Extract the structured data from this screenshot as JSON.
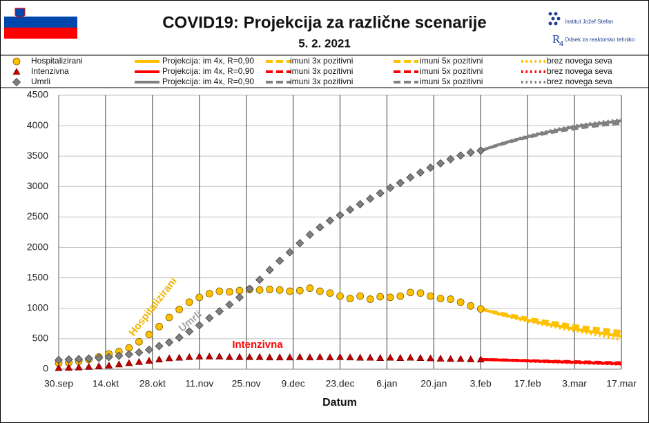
{
  "chart_data": {
    "type": "line",
    "title": "COVID19: Projekcija za različne scenarije",
    "subtitle": "5. 2. 2021",
    "logo_texts": [
      "Institut Jožef Stefan",
      "Odsek za reaktorsko tehniko"
    ],
    "x_label": "Datum",
    "xlim": [
      0,
      168
    ],
    "xticks": [
      {
        "value": 0,
        "label": "30.sep"
      },
      {
        "value": 14,
        "label": "14.okt"
      },
      {
        "value": 28,
        "label": "28.okt"
      },
      {
        "value": 42,
        "label": "11.nov"
      },
      {
        "value": 56,
        "label": "25.nov"
      },
      {
        "value": 70,
        "label": "9.dec"
      },
      {
        "value": 84,
        "label": "23.dec"
      },
      {
        "value": 98,
        "label": "6.jan"
      },
      {
        "value": 112,
        "label": "20.jan"
      },
      {
        "value": 126,
        "label": "3.feb"
      },
      {
        "value": 140,
        "label": "17.feb"
      },
      {
        "value": 154,
        "label": "3.mar"
      },
      {
        "value": 168,
        "label": "17.mar"
      }
    ],
    "ylim": [
      0,
      4500
    ],
    "yticks": [
      0,
      500,
      1000,
      1500,
      2000,
      2500,
      3000,
      3500,
      4000,
      4500
    ],
    "grid": true,
    "annotations": [
      {
        "text": "Hospitalizirani",
        "color": "#f0b400"
      },
      {
        "text": "Umrli",
        "color": "#a6a6a6"
      },
      {
        "text": "Intenzivna",
        "color": "#ff0000"
      }
    ],
    "series": [
      {
        "name": "Hospitalizirani",
        "color": "#ffc000",
        "marker": "circle",
        "x": [
          0,
          3,
          6,
          9,
          12,
          15,
          18,
          21,
          24,
          27,
          30,
          33,
          36,
          39,
          42,
          45,
          48,
          51,
          54,
          57,
          60,
          63,
          66,
          69,
          72,
          75,
          78,
          81,
          84,
          87,
          90,
          93,
          96,
          99,
          102,
          105,
          108,
          111,
          114,
          117,
          120,
          123,
          126
        ],
        "values": [
          100,
          110,
          130,
          160,
          200,
          250,
          290,
          350,
          450,
          570,
          700,
          850,
          980,
          1100,
          1180,
          1240,
          1280,
          1270,
          1290,
          1310,
          1300,
          1310,
          1300,
          1280,
          1290,
          1330,
          1280,
          1250,
          1200,
          1160,
          1200,
          1150,
          1190,
          1180,
          1200,
          1260,
          1250,
          1200,
          1160,
          1150,
          1100,
          1040,
          990
        ]
      },
      {
        "name": "Projekcija: im 4x, R=0,90",
        "color": "#ffc000",
        "dash": "solid",
        "x": [
          126,
          132,
          138,
          144,
          150,
          156,
          162,
          168
        ],
        "values": [
          990,
          900,
          830,
          760,
          700,
          640,
          590,
          540
        ]
      },
      {
        "name": "imuni 3x pozitivni",
        "color": "#ffc000",
        "dash": "dashed",
        "x": [
          126,
          132,
          138,
          144,
          150,
          156,
          162,
          168
        ],
        "values": [
          990,
          910,
          840,
          780,
          720,
          670,
          620,
          580
        ]
      },
      {
        "name": "imuni 5x pozitivni",
        "color": "#ffc000",
        "dash": "dashed",
        "x": [
          126,
          132,
          138,
          144,
          150,
          156,
          162,
          168
        ],
        "values": [
          990,
          920,
          860,
          800,
          750,
          700,
          660,
          620
        ]
      },
      {
        "name": "brez novega seva",
        "color": "#ffc000",
        "dash": "dotted",
        "x": [
          126,
          132,
          138,
          144,
          150,
          156,
          162,
          168
        ],
        "values": [
          990,
          890,
          810,
          740,
          670,
          610,
          550,
          480
        ]
      },
      {
        "name": "Intenzivna",
        "color": "#c00000",
        "marker": "triangle",
        "x": [
          0,
          3,
          6,
          9,
          12,
          15,
          18,
          21,
          24,
          27,
          30,
          33,
          36,
          39,
          42,
          45,
          48,
          51,
          54,
          57,
          60,
          63,
          66,
          69,
          72,
          75,
          78,
          81,
          84,
          87,
          90,
          93,
          96,
          99,
          102,
          105,
          108,
          111,
          114,
          117,
          120,
          123,
          126
        ],
        "values": [
          20,
          25,
          30,
          40,
          50,
          60,
          80,
          100,
          120,
          140,
          160,
          180,
          190,
          200,
          210,
          210,
          210,
          200,
          200,
          200,
          200,
          195,
          195,
          195,
          200,
          195,
          200,
          195,
          200,
          195,
          190,
          190,
          185,
          190,
          185,
          190,
          185,
          180,
          175,
          170,
          170,
          165,
          160
        ]
      },
      {
        "name": "Projekcija: im 4x, R=0,90",
        "color": "#ff0000",
        "dash": "solid",
        "x": [
          126,
          132,
          138,
          144,
          150,
          156,
          162,
          168
        ],
        "values": [
          160,
          150,
          140,
          130,
          120,
          110,
          100,
          90
        ]
      },
      {
        "name": "imuni 3x pozitivni",
        "color": "#ff0000",
        "dash": "dashed",
        "x": [
          126,
          132,
          138,
          144,
          150,
          156,
          162,
          168
        ],
        "values": [
          160,
          152,
          143,
          134,
          125,
          116,
          107,
          98
        ]
      },
      {
        "name": "imuni 5x pozitivni",
        "color": "#ff0000",
        "dash": "dashed",
        "x": [
          126,
          132,
          138,
          144,
          150,
          156,
          162,
          168
        ],
        "values": [
          160,
          153,
          145,
          137,
          129,
          121,
          113,
          105
        ]
      },
      {
        "name": "brez novega seva",
        "color": "#ff0000",
        "dash": "dotted",
        "x": [
          126,
          132,
          138,
          144,
          150,
          156,
          162,
          168
        ],
        "values": [
          160,
          148,
          136,
          124,
          113,
          102,
          92,
          82
        ]
      },
      {
        "name": "Umrli",
        "color": "#7f7f7f",
        "marker": "diamond",
        "x": [
          0,
          3,
          6,
          9,
          12,
          15,
          18,
          21,
          24,
          27,
          30,
          33,
          36,
          39,
          42,
          45,
          48,
          51,
          54,
          57,
          60,
          63,
          66,
          69,
          72,
          75,
          78,
          81,
          84,
          87,
          90,
          93,
          96,
          99,
          102,
          105,
          108,
          111,
          114,
          117,
          120,
          123,
          126
        ],
        "values": [
          150,
          160,
          165,
          175,
          185,
          200,
          220,
          245,
          275,
          320,
          380,
          440,
          520,
          620,
          720,
          840,
          950,
          1060,
          1180,
          1320,
          1470,
          1630,
          1780,
          1920,
          2070,
          2210,
          2330,
          2440,
          2530,
          2620,
          2710,
          2800,
          2890,
          2980,
          3060,
          3150,
          3230,
          3310,
          3380,
          3450,
          3510,
          3560,
          3590
        ]
      },
      {
        "name": "Projekcija: im 4x, R=0,90",
        "color": "#808080",
        "dash": "solid",
        "x": [
          126,
          132,
          138,
          144,
          150,
          156,
          162,
          168
        ],
        "values": [
          3590,
          3700,
          3790,
          3870,
          3940,
          4000,
          4040,
          4080
        ]
      },
      {
        "name": "imuni 3x pozitivni",
        "color": "#808080",
        "dash": "dashed",
        "x": [
          126,
          132,
          138,
          144,
          150,
          156,
          162,
          168
        ],
        "values": [
          3590,
          3695,
          3785,
          3860,
          3925,
          3980,
          4020,
          4055
        ]
      },
      {
        "name": "imuni 5x pozitivni",
        "color": "#808080",
        "dash": "dashed",
        "x": [
          126,
          132,
          138,
          144,
          150,
          156,
          162,
          168
        ],
        "values": [
          3590,
          3690,
          3780,
          3855,
          3915,
          3965,
          4005,
          4040
        ]
      },
      {
        "name": "brez novega seva",
        "color": "#808080",
        "dash": "dotted",
        "x": [
          126,
          132,
          138,
          144,
          150,
          156,
          162,
          168
        ],
        "values": [
          3590,
          3705,
          3800,
          3885,
          3955,
          4015,
          4060,
          4100
        ]
      }
    ]
  }
}
